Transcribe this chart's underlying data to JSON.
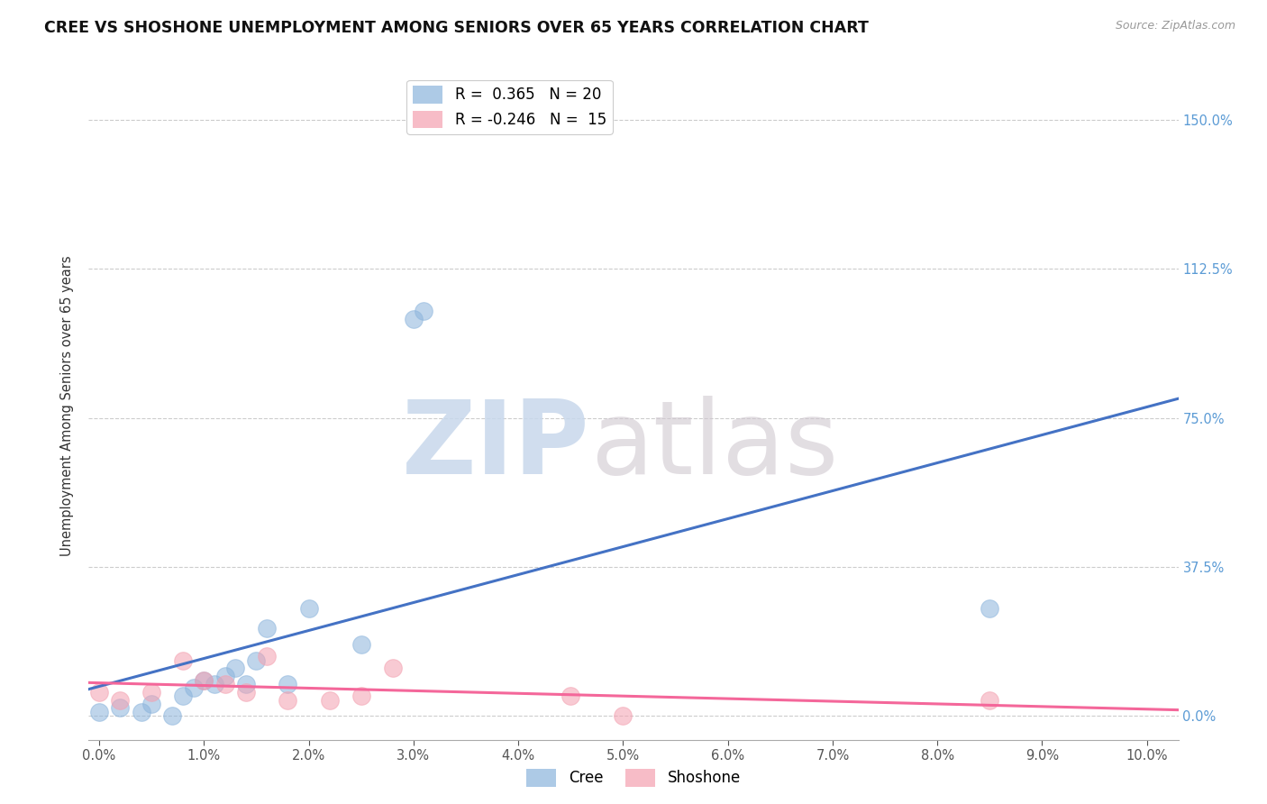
{
  "title": "CREE VS SHOSHONE UNEMPLOYMENT AMONG SENIORS OVER 65 YEARS CORRELATION CHART",
  "source": "Source: ZipAtlas.com",
  "ylabel": "Unemployment Among Seniors over 65 years",
  "x_ticks": [
    0.0,
    0.01,
    0.02,
    0.03,
    0.04,
    0.05,
    0.06,
    0.07,
    0.08,
    0.09,
    0.1
  ],
  "x_tick_labels": [
    "0.0%",
    "1.0%",
    "2.0%",
    "3.0%",
    "4.0%",
    "5.0%",
    "6.0%",
    "7.0%",
    "8.0%",
    "9.0%",
    "10.0%"
  ],
  "y_ticks": [
    0.0,
    0.375,
    0.75,
    1.125,
    1.5
  ],
  "y_tick_labels": [
    "0.0%",
    "37.5%",
    "75.0%",
    "112.5%",
    "150.0%"
  ],
  "xlim": [
    -0.001,
    0.103
  ],
  "ylim": [
    -0.06,
    1.62
  ],
  "cree_color": "#8BB4DC",
  "shoshone_color": "#F4A0B0",
  "cree_line_color": "#4472C4",
  "shoshone_line_color": "#F4679A",
  "cree_R": 0.365,
  "cree_N": 20,
  "shoshone_R": -0.246,
  "shoshone_N": 15,
  "cree_x": [
    0.0,
    0.002,
    0.004,
    0.005,
    0.007,
    0.008,
    0.009,
    0.01,
    0.011,
    0.012,
    0.013,
    0.014,
    0.015,
    0.016,
    0.018,
    0.02,
    0.025,
    0.03,
    0.031,
    0.085
  ],
  "cree_y": [
    0.01,
    0.02,
    0.01,
    0.03,
    0.0,
    0.05,
    0.07,
    0.09,
    0.08,
    0.1,
    0.12,
    0.08,
    0.14,
    0.22,
    0.08,
    0.27,
    0.18,
    1.0,
    1.02,
    0.27
  ],
  "shoshone_x": [
    0.0,
    0.002,
    0.005,
    0.008,
    0.01,
    0.012,
    0.014,
    0.016,
    0.018,
    0.022,
    0.025,
    0.028,
    0.045,
    0.05,
    0.085
  ],
  "shoshone_y": [
    0.06,
    0.04,
    0.06,
    0.14,
    0.09,
    0.08,
    0.06,
    0.15,
    0.04,
    0.04,
    0.05,
    0.12,
    0.05,
    0.0,
    0.04
  ],
  "grid_color": "#CCCCCC",
  "background_color": "#FFFFFF",
  "right_tick_color": "#5B9BD5",
  "right_y_ticks": [
    0.0,
    0.375,
    0.75,
    1.125,
    1.5
  ],
  "right_y_tick_labels": [
    "0.0%",
    "37.5%",
    "75.0%",
    "112.5%",
    "150.0%"
  ]
}
